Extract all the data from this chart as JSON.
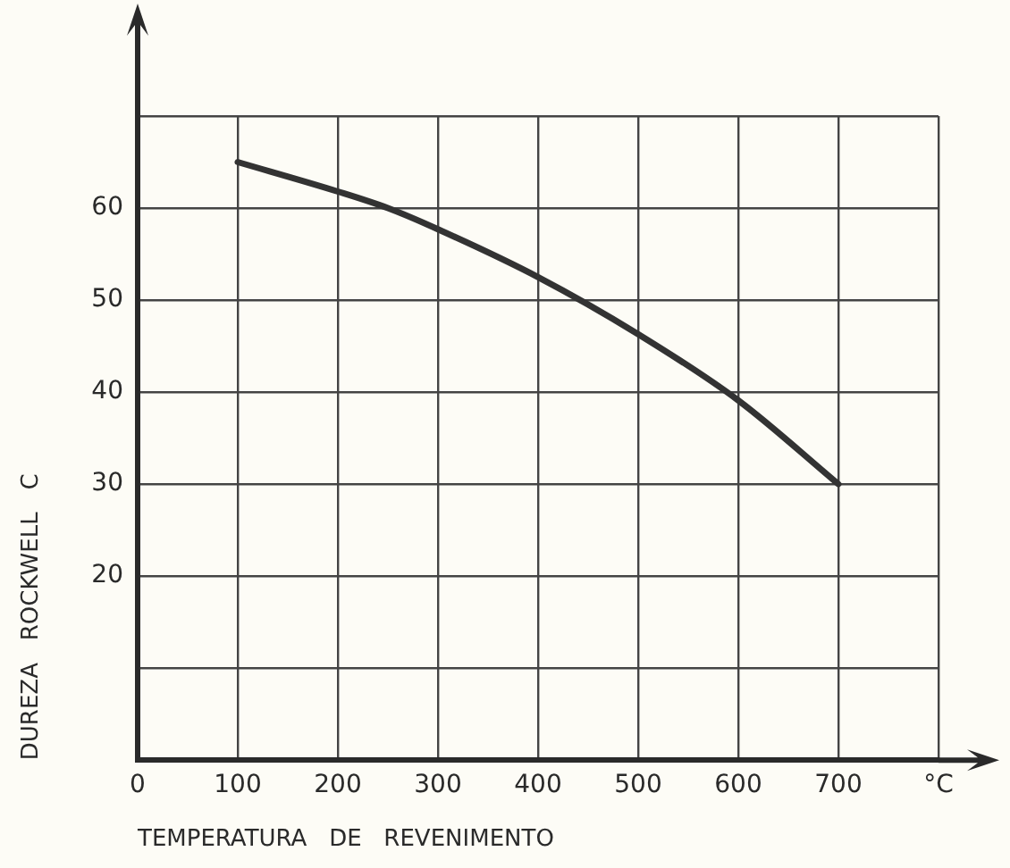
{
  "chart_data": {
    "type": "line",
    "xlabel": "TEMPERATURA   DE   REVENIMENTO",
    "ylabel": "DUREZA   ROCKWELL   C",
    "x": [
      100,
      200,
      250,
      300,
      400,
      500,
      600,
      700
    ],
    "series": [
      {
        "color": "#333333",
        "values": [
          65,
          61.8,
          60,
          57.7,
          52.5,
          46.3,
          39.1,
          30
        ]
      }
    ],
    "xlim": [
      0,
      800
    ],
    "xticks": [
      0,
      100,
      200,
      300,
      400,
      500,
      600,
      700,
      {
        "value": 800,
        "label": "°C"
      }
    ],
    "ylim": [
      0,
      70
    ],
    "yticks": [
      {
        "value": 0,
        "label": null
      },
      {
        "value": 10,
        "label": null
      },
      20,
      30,
      40,
      50,
      60,
      {
        "value": 70,
        "label": null
      }
    ],
    "grid": true,
    "legend": false,
    "marker": "none",
    "line_style": "solid"
  }
}
